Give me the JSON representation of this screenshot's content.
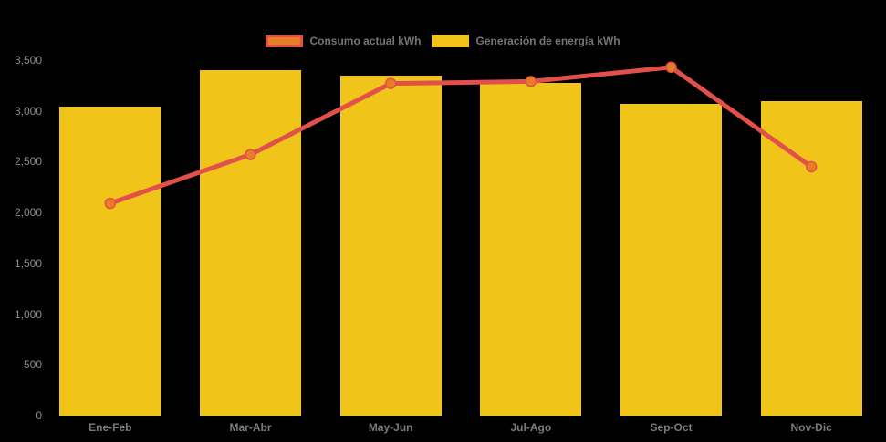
{
  "chart_data": {
    "type": "combo-bar-line",
    "title": "",
    "categories": [
      "Ene-Feb",
      "Mar-Abr",
      "May-Jun",
      "Jul-Ago",
      "Sep-Oct",
      "Nov-Dic"
    ],
    "series": [
      {
        "name": "Consumo actual kWh",
        "type": "line",
        "color": "#e2504c",
        "marker_color": "#e57e25",
        "values": [
          2090,
          2570,
          3270,
          3290,
          3430,
          2450
        ]
      },
      {
        "name": "Generación de energía kWh",
        "type": "bar",
        "color": "#f0c419",
        "values": [
          3040,
          3400,
          3350,
          3280,
          3070,
          3100
        ]
      }
    ],
    "xlabel": "",
    "ylabel": "",
    "ylim": [
      0,
      3500
    ],
    "ytick_step": 500,
    "ytick_labels": [
      "0",
      "500",
      "1,000",
      "1,500",
      "2,000",
      "2,500",
      "3,000",
      "3,500"
    ],
    "grid": false,
    "legend_position": "top",
    "background_color": "#000000",
    "axis_label_color": "#8c8c8c",
    "legend_label_color": "#757575"
  }
}
